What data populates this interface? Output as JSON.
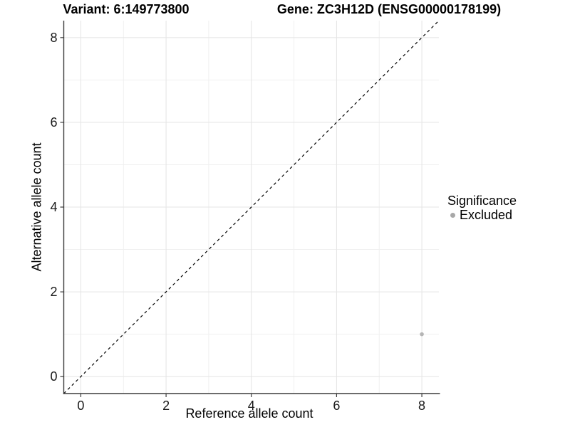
{
  "chart_data": {
    "type": "scatter",
    "titles": {
      "variant": "Variant: 6:149773800",
      "gene": "Gene: ZC3H12D (ENSG00000178199)"
    },
    "xlabel": "Reference allele count",
    "ylabel": "Alternative allele count",
    "xlim": [
      -0.4,
      8.4
    ],
    "ylim": [
      -0.4,
      8.4
    ],
    "x_ticks": [
      0,
      2,
      4,
      6,
      8
    ],
    "y_ticks": [
      0,
      2,
      4,
      6,
      8
    ],
    "x_minor_ticks": [
      1,
      3,
      5,
      7
    ],
    "y_minor_ticks": [
      1,
      3,
      5,
      7
    ],
    "grid": true,
    "identity_line": {
      "slope": 1,
      "intercept": 0,
      "style": "dashed",
      "color": "#000000"
    },
    "series": [
      {
        "name": "Excluded",
        "color": "#b5b5b5",
        "points": [
          {
            "x": 8,
            "y": 1
          }
        ]
      }
    ],
    "legend": {
      "title": "Significance",
      "position": "right",
      "items": [
        {
          "label": "Excluded",
          "color": "#a8a8a8"
        }
      ]
    },
    "colors": {
      "grid_major": "#e4e4e4",
      "grid_minor": "#f0f0f0",
      "axis_line": "#3c3c3c",
      "tick_mark": "#3c3c3c",
      "background": "#ffffff"
    }
  }
}
